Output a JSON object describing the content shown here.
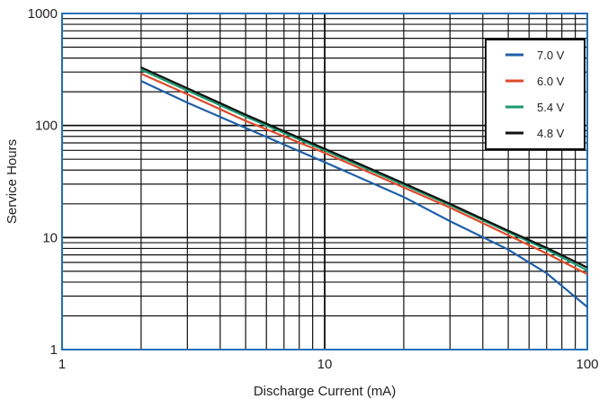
{
  "chart_data": {
    "type": "line",
    "title": "",
    "xlabel": "Discharge Current (mA)",
    "ylabel": "Service Hours",
    "x_scale": "log",
    "y_scale": "log",
    "xlim": [
      1,
      100
    ],
    "ylim": [
      1,
      1000
    ],
    "x_tick_labels": [
      "1",
      "10",
      "100"
    ],
    "y_tick_labels": [
      "1",
      "10",
      "100",
      "1000"
    ],
    "grid": true,
    "legend_position": "top-right",
    "series": [
      {
        "name": "7.0 V",
        "color": "#1f5fa8",
        "x": [
          2,
          3,
          5,
          10,
          20,
          30,
          50,
          70,
          100
        ],
        "y": [
          250,
          160,
          95,
          47,
          23,
          14,
          7.8,
          4.8,
          2.4
        ]
      },
      {
        "name": "6.0 V",
        "color": "#e04a2b",
        "x": [
          2,
          3,
          5,
          10,
          20,
          30,
          50,
          70,
          100
        ],
        "y": [
          290,
          190,
          110,
          57,
          28,
          18.5,
          10.5,
          7.2,
          4.7
        ]
      },
      {
        "name": "5.4 V",
        "color": "#1a9a6e",
        "x": [
          2,
          3,
          5,
          10,
          20,
          30,
          50,
          70,
          100
        ],
        "y": [
          315,
          205,
          120,
          60,
          29.5,
          19.5,
          11.2,
          7.8,
          5.1
        ]
      },
      {
        "name": "4.8 V",
        "color": "#111111",
        "x": [
          2,
          3,
          5,
          10,
          20,
          30,
          50,
          70,
          100
        ],
        "y": [
          330,
          215,
          125,
          62,
          30.5,
          20,
          11.5,
          8.1,
          5.4
        ]
      }
    ]
  }
}
